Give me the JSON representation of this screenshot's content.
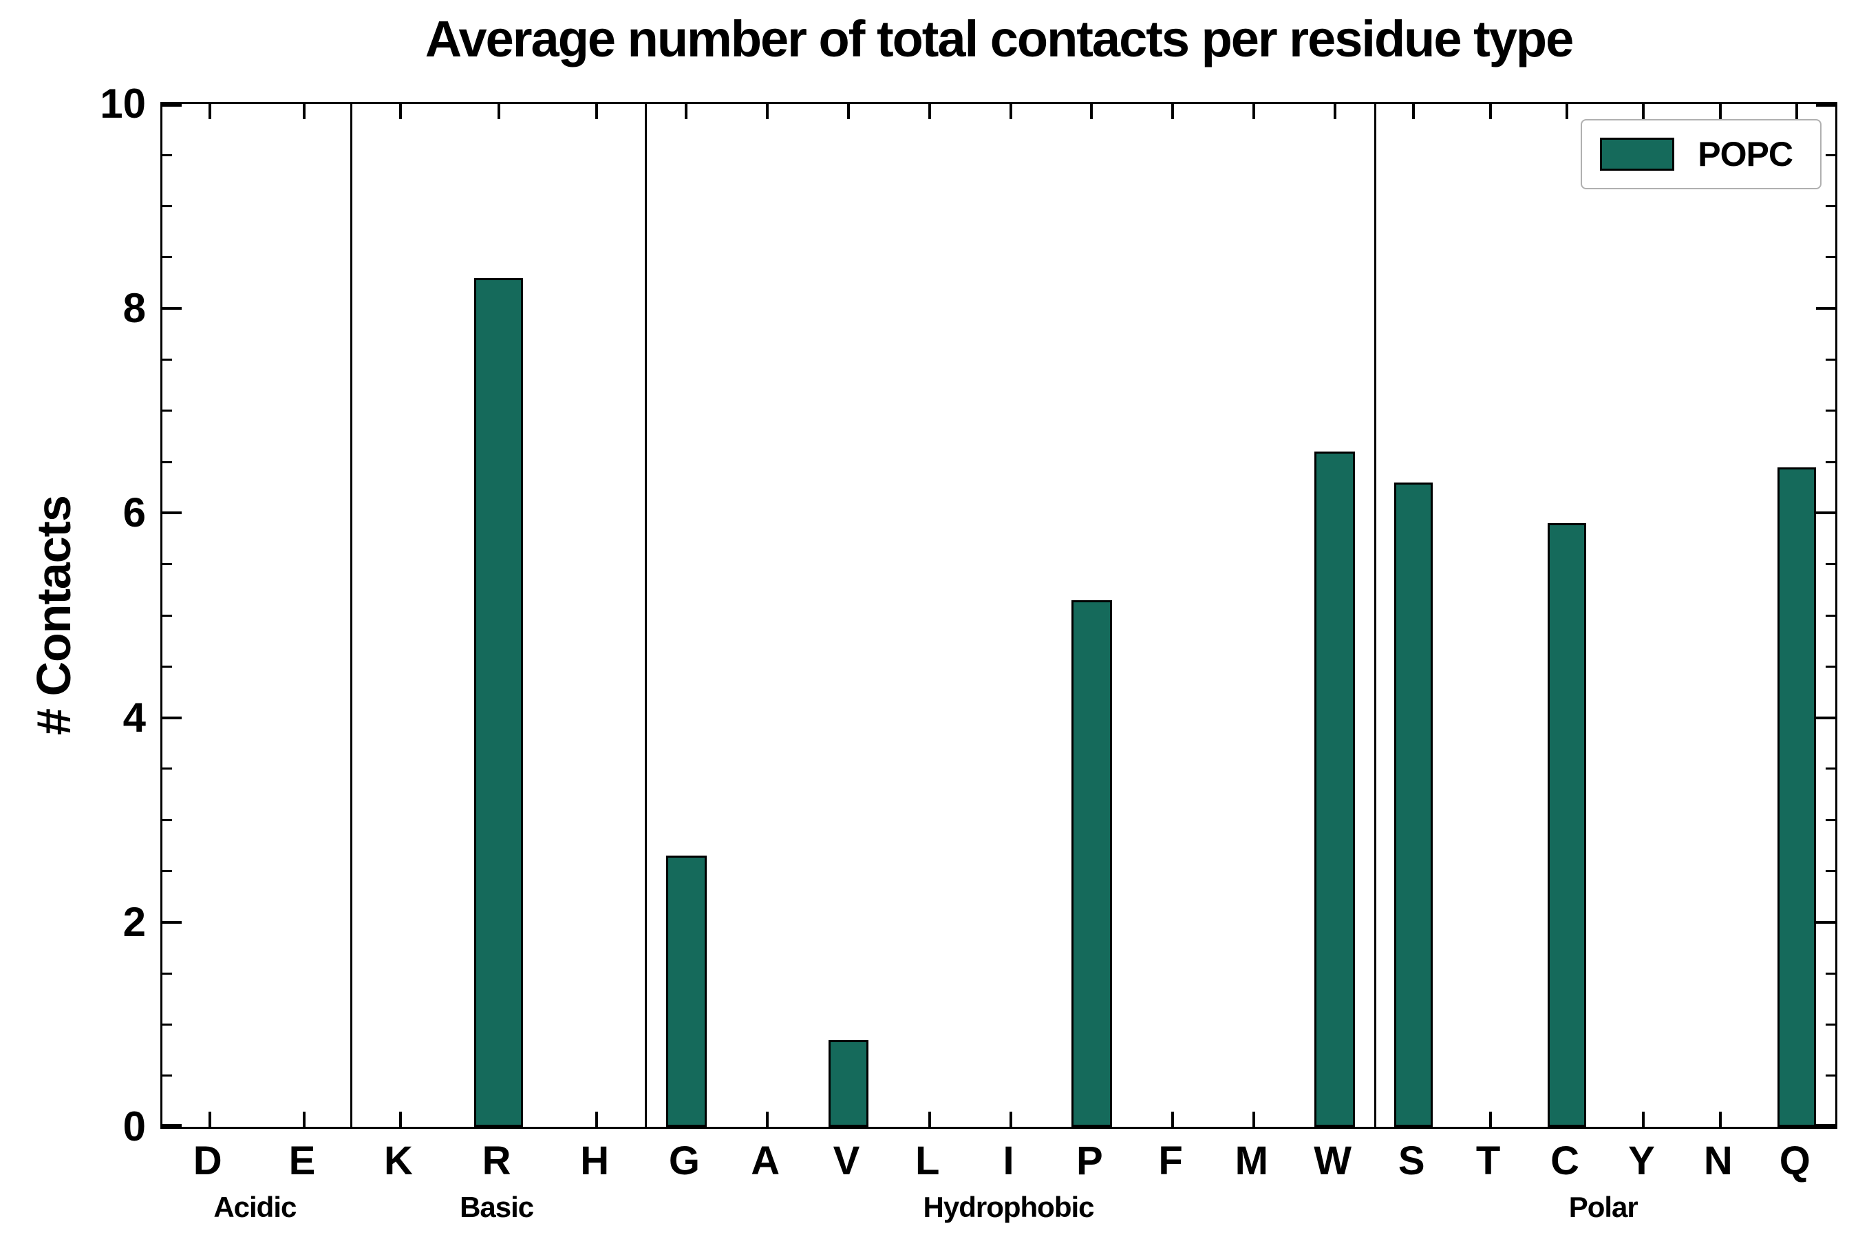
{
  "chart_data": {
    "type": "bar",
    "title": "Average number of total contacts per residue type",
    "xlabel": "",
    "ylabel": "# Contacts",
    "ylim": [
      0,
      10
    ],
    "yticks_major": [
      0,
      2,
      4,
      6,
      8,
      10
    ],
    "ytick_minor_step": 0.5,
    "grid": false,
    "legend": {
      "label": "POPC",
      "position": "upper right"
    },
    "bar_color": "#156A5B",
    "bar_edge_color": "#000000",
    "groups": [
      {
        "label": "Acidic",
        "categories": [
          "D",
          "E"
        ],
        "values": [
          0,
          0
        ]
      },
      {
        "label": "Basic",
        "categories": [
          "K",
          "R",
          "H"
        ],
        "values": [
          0,
          8.3,
          0
        ]
      },
      {
        "label": "Hydrophobic",
        "categories": [
          "G",
          "A",
          "V",
          "L",
          "I",
          "P",
          "F",
          "M",
          "W"
        ],
        "values": [
          2.65,
          0,
          0.85,
          0,
          0,
          5.15,
          0,
          0,
          6.6
        ]
      },
      {
        "label": "Polar",
        "categories": [
          "S",
          "T",
          "C",
          "Y",
          "N",
          "Q"
        ],
        "values": [
          6.3,
          0,
          5.9,
          0,
          0,
          6.45
        ]
      }
    ],
    "series": [
      {
        "name": "POPC",
        "color": "#156A5B"
      }
    ]
  }
}
